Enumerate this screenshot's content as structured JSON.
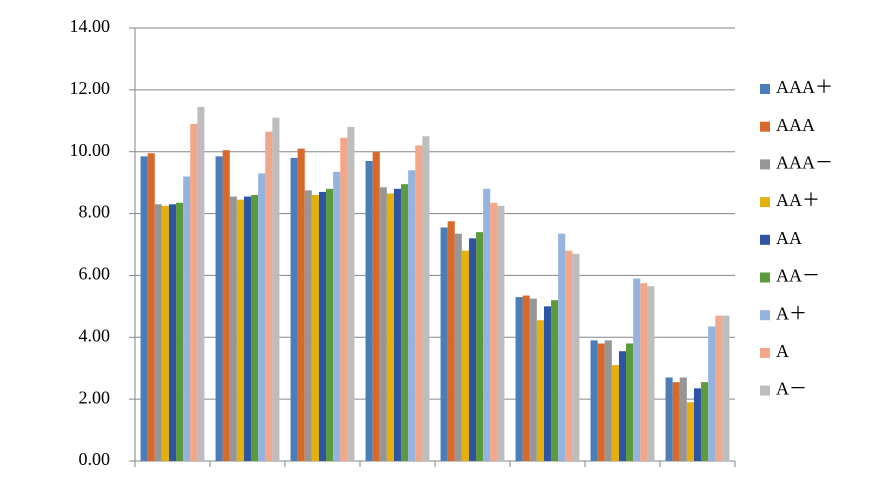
{
  "chart_data": {
    "type": "bar",
    "categories": [
      null,
      null,
      null,
      null,
      null,
      null,
      null,
      null
    ],
    "series": [
      {
        "name": "AAA＋",
        "color": "#4a7ebb",
        "values": [
          9.85,
          9.85,
          9.8,
          9.7,
          7.55,
          5.3,
          3.9,
          2.7
        ]
      },
      {
        "name": "AAA",
        "color": "#d7692a",
        "values": [
          9.95,
          10.05,
          10.1,
          10.0,
          7.75,
          5.35,
          3.8,
          2.55
        ]
      },
      {
        "name": "AAA－",
        "color": "#969696",
        "values": [
          8.3,
          8.55,
          8.75,
          8.85,
          7.35,
          5.25,
          3.9,
          2.7
        ]
      },
      {
        "name": "AA＋",
        "color": "#e5b00e",
        "values": [
          8.25,
          8.45,
          8.6,
          8.65,
          6.8,
          4.55,
          3.1,
          1.9
        ]
      },
      {
        "name": "AA",
        "color": "#2f54a3",
        "values": [
          8.3,
          8.55,
          8.7,
          8.8,
          7.2,
          5.0,
          3.55,
          2.35
        ]
      },
      {
        "name": "AA－",
        "color": "#5c9a3e",
        "values": [
          8.35,
          8.6,
          8.8,
          8.95,
          7.4,
          5.2,
          3.8,
          2.55
        ]
      },
      {
        "name": "A＋",
        "color": "#95b3df",
        "values": [
          9.2,
          9.3,
          9.35,
          9.4,
          8.8,
          7.35,
          5.9,
          4.35
        ]
      },
      {
        "name": "A",
        "color": "#f2a68a",
        "values": [
          10.9,
          10.65,
          10.45,
          10.2,
          8.35,
          6.8,
          5.75,
          4.7
        ]
      },
      {
        "name": "A－",
        "color": "#bdbdbd",
        "values": [
          11.45,
          11.1,
          10.8,
          10.5,
          8.25,
          6.7,
          5.65,
          4.7
        ]
      }
    ],
    "ylim": [
      0,
      14
    ],
    "yticks": [
      {
        "value": 0,
        "label": "0.00"
      },
      {
        "value": 2,
        "label": "2.00"
      },
      {
        "value": 4,
        "label": "4.00"
      },
      {
        "value": 6,
        "label": "6.00"
      },
      {
        "value": 8,
        "label": "8.00"
      },
      {
        "value": 10,
        "label": "10.00"
      },
      {
        "value": 12,
        "label": "12.00"
      },
      {
        "value": 14,
        "label": "14.00"
      }
    ],
    "grid": true,
    "legend": "right"
  }
}
